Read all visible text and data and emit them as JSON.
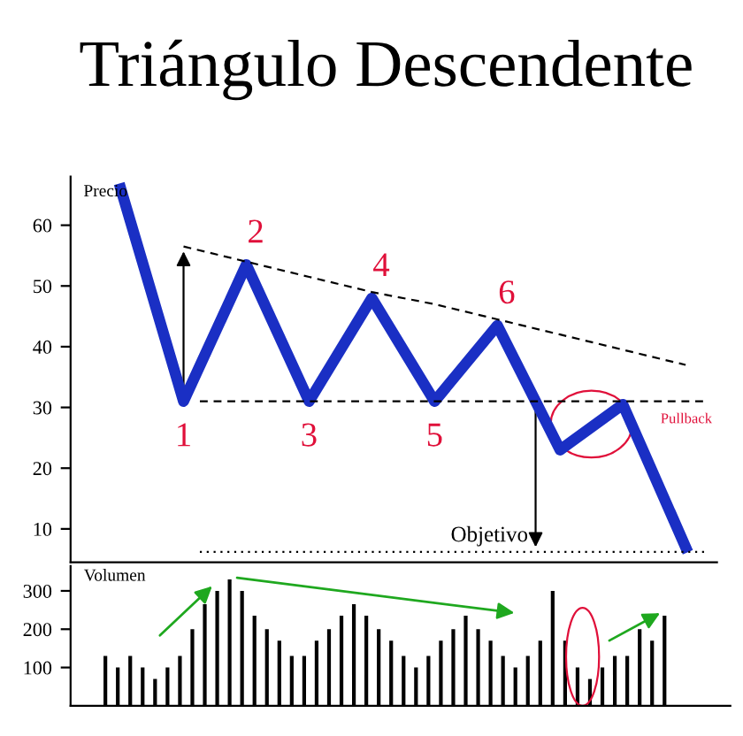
{
  "chart_data": [
    {
      "type": "line",
      "title": "Triángulo Descendente",
      "ylabel": "Precio",
      "tick_labels": "y",
      "ylim": [
        4.5,
        68
      ],
      "yticks": [
        10,
        20,
        30,
        40,
        50,
        60
      ],
      "grid": false,
      "legend": false,
      "categories": [
        null,
        null,
        null,
        null,
        null,
        null,
        null,
        null,
        null,
        null
      ],
      "series": [
        {
          "color": "#1a2fc4",
          "values": [
            66,
            31,
            53.5,
            31,
            48,
            31,
            43.5,
            23,
            30.5,
            7
          ]
        },
        {
          "color": "#000000",
          "line_style": "dashed",
          "values": [
            null,
            56.5,
            54,
            51.5,
            49,
            47,
            44.5,
            42,
            39.5,
            37
          ]
        }
      ],
      "ref_lines": [
        {
          "axis": "y",
          "value": 31,
          "color": "#000000",
          "line_style": "dashed"
        },
        {
          "axis": "y",
          "value": 6.2,
          "color": "#000000",
          "line_style": "dotted"
        }
      ],
      "annotations": [
        "1",
        "2",
        "3",
        "4",
        "5",
        "6",
        "Pullback",
        "Objetivo"
      ]
    },
    {
      "type": "bar",
      "ylabel": "Volumen",
      "tick_labels": "y",
      "ylim": [
        0,
        365
      ],
      "yticks": [
        100,
        200,
        300
      ],
      "grid": false,
      "legend": false,
      "color": "#000000",
      "categories": [
        null,
        null,
        null,
        null,
        null,
        null,
        null,
        null,
        null,
        null,
        null,
        null,
        null,
        null,
        null,
        null,
        null,
        null,
        null,
        null,
        null,
        null,
        null,
        null,
        null,
        null,
        null,
        null,
        null,
        null,
        null,
        null,
        null,
        null,
        null,
        null,
        null,
        null,
        null,
        null,
        null,
        null,
        null,
        null,
        null,
        null
      ],
      "values": [
        130,
        100,
        130,
        100,
        70,
        100,
        130,
        200,
        265,
        300,
        330,
        300,
        235,
        200,
        170,
        130,
        130,
        170,
        200,
        235,
        265,
        235,
        200,
        170,
        130,
        100,
        130,
        170,
        200,
        235,
        200,
        170,
        130,
        100,
        130,
        170,
        300,
        170,
        100,
        70,
        100,
        130,
        130,
        200,
        170,
        235
      ]
    }
  ]
}
